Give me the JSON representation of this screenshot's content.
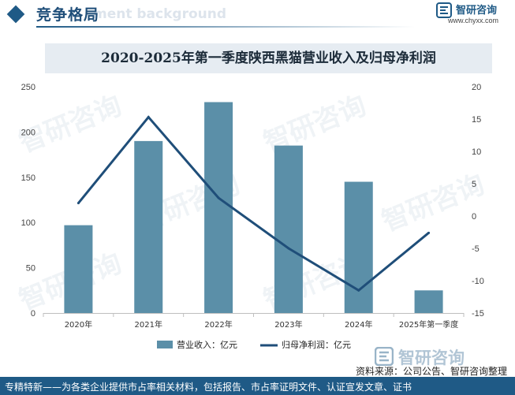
{
  "header": {
    "title": "竞争格局",
    "bg_word": "ment background",
    "brand_name": "智研咨询",
    "brand_url": "www.chyxx.com"
  },
  "watermark": {
    "text": "智研咨询"
  },
  "chart_data": {
    "type": "bar+line",
    "title": "2020-2025年第一季度陕西黑猫营业收入及归母净利润",
    "categories": [
      "2020年",
      "2021年",
      "2022年",
      "2023年",
      "2024年",
      "2025年第一季度"
    ],
    "series": [
      {
        "name": "营业收入：亿元",
        "type": "bar",
        "axis": "left",
        "color": "#5b8fa8",
        "values": [
          97,
          190,
          233,
          185,
          145,
          25
        ]
      },
      {
        "name": "归母净利润：亿元",
        "type": "line",
        "axis": "right",
        "color": "#1f4e79",
        "values": [
          2.0,
          15.3,
          2.8,
          -5.0,
          -11.5,
          -2.6
        ]
      }
    ],
    "y_left": {
      "min": 0,
      "max": 250,
      "ticks": [
        0,
        50,
        100,
        150,
        200,
        250
      ]
    },
    "y_right": {
      "min": -15,
      "max": 20,
      "ticks": [
        -15,
        -10,
        -5,
        0,
        5,
        10,
        15,
        20
      ]
    },
    "legend_position": "bottom-center",
    "grid": false
  },
  "source": "资料来源：公司公告、智研咨询整理",
  "footer": "专精特新——为各类企业提供市占率相关材料，包括报告、市占率证明文件、认证宣发文章、证书"
}
